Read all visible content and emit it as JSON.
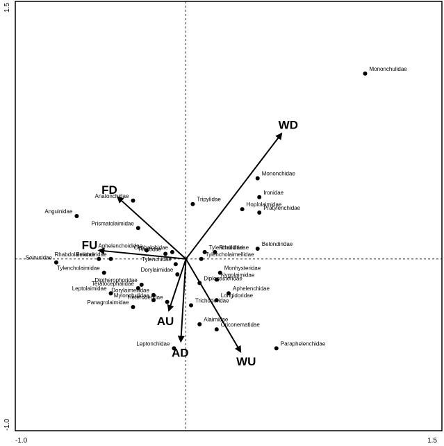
{
  "chart_data": {
    "type": "scatter",
    "subtype": "ordination biplot",
    "xlim": [
      -1.0,
      1.5
    ],
    "ylim": [
      -1.0,
      1.5
    ],
    "x_tick_labels": [
      "-1.0",
      "1.5"
    ],
    "y_tick_labels": [
      "-1.0",
      "1.5"
    ],
    "grid": false,
    "zero_lines": "dashed",
    "points": [
      {
        "name": "Mononchulidae",
        "x": 1.05,
        "y": 1.08
      },
      {
        "name": "Mononchidae",
        "x": 0.42,
        "y": 0.47
      },
      {
        "name": "Ironidae",
        "x": 0.43,
        "y": 0.36
      },
      {
        "name": "Hoplolaimidae",
        "x": 0.33,
        "y": 0.29
      },
      {
        "name": "Pratylenchidae",
        "x": 0.43,
        "y": 0.27
      },
      {
        "name": "Tripylidae",
        "x": 0.04,
        "y": 0.32
      },
      {
        "name": "Anatonchidae",
        "x": -0.31,
        "y": 0.34
      },
      {
        "name": "Anguinidae",
        "x": -0.64,
        "y": 0.25
      },
      {
        "name": "Prismatolaimidae",
        "x": -0.28,
        "y": 0.18
      },
      {
        "name": "Aphelenchoididae",
        "x": -0.23,
        "y": 0.05
      },
      {
        "name": "Plectidae",
        "x": -0.12,
        "y": 0.03
      },
      {
        "name": "Cephalobidae",
        "x": -0.08,
        "y": 0.04
      },
      {
        "name": "Rhabdolaimidae",
        "x": -0.51,
        "y": 0.0
      },
      {
        "name": "Belondiridae",
        "x": -0.44,
        "y": 0.0
      },
      {
        "name": "Seinuridae",
        "x": -0.76,
        "y": -0.02
      },
      {
        "name": "Tylenchidae",
        "x": -0.06,
        "y": -0.03
      },
      {
        "name": "Tylencholaimidae",
        "x": -0.48,
        "y": -0.08
      },
      {
        "name": "Dorylaimidae",
        "x": -0.05,
        "y": -0.09
      },
      {
        "name": "Diptherophoridae",
        "x": -0.26,
        "y": -0.15
      },
      {
        "name": "Teratocephalidae",
        "x": -0.28,
        "y": -0.17
      },
      {
        "name": "Leptolaimidae",
        "x": -0.44,
        "y": -0.2
      },
      {
        "name": "Dorylaimellidae",
        "x": -0.19,
        "y": -0.21
      },
      {
        "name": "Mylonchulidae",
        "x": -0.19,
        "y": -0.24
      },
      {
        "name": "Heteroderidae",
        "x": -0.11,
        "y": -0.25
      },
      {
        "name": "Panagrolaimidae",
        "x": -0.31,
        "y": -0.28
      },
      {
        "name": "Tylenchulidae",
        "x": 0.11,
        "y": 0.04
      },
      {
        "name": "Rhabditidae",
        "x": 0.17,
        "y": 0.04
      },
      {
        "name": "Tylencholaimellidae",
        "x": 0.09,
        "y": 0.0
      },
      {
        "name": "Monhysteridae",
        "x": 0.2,
        "y": -0.08
      },
      {
        "name": "Nygolaimidae",
        "x": 0.18,
        "y": -0.12
      },
      {
        "name": "Diplogasteridae",
        "x": 0.08,
        "y": -0.14
      },
      {
        "name": "Belondiridae",
        "x": 0.42,
        "y": 0.06
      },
      {
        "name": "Aphelenchidae",
        "x": 0.25,
        "y": -0.2
      },
      {
        "name": "Longidoridae",
        "x": 0.18,
        "y": -0.24
      },
      {
        "name": "Trichodoridae",
        "x": 0.03,
        "y": -0.27
      },
      {
        "name": "Alaimidae",
        "x": 0.08,
        "y": -0.38
      },
      {
        "name": "Criconematidae",
        "x": 0.18,
        "y": -0.41
      },
      {
        "name": "Paraphelenchidae",
        "x": 0.53,
        "y": -0.52
      },
      {
        "name": "Leptonchidae",
        "x": -0.07,
        "y": -0.52
      }
    ],
    "vectors": [
      {
        "name": "WD",
        "x": 0.56,
        "y": 0.73
      },
      {
        "name": "FD",
        "x": -0.4,
        "y": 0.36
      },
      {
        "name": "FU",
        "x": -0.51,
        "y": 0.05
      },
      {
        "name": "AU",
        "x": -0.1,
        "y": -0.3
      },
      {
        "name": "AD",
        "x": -0.03,
        "y": -0.48
      },
      {
        "name": "WU",
        "x": 0.32,
        "y": -0.54
      }
    ]
  }
}
